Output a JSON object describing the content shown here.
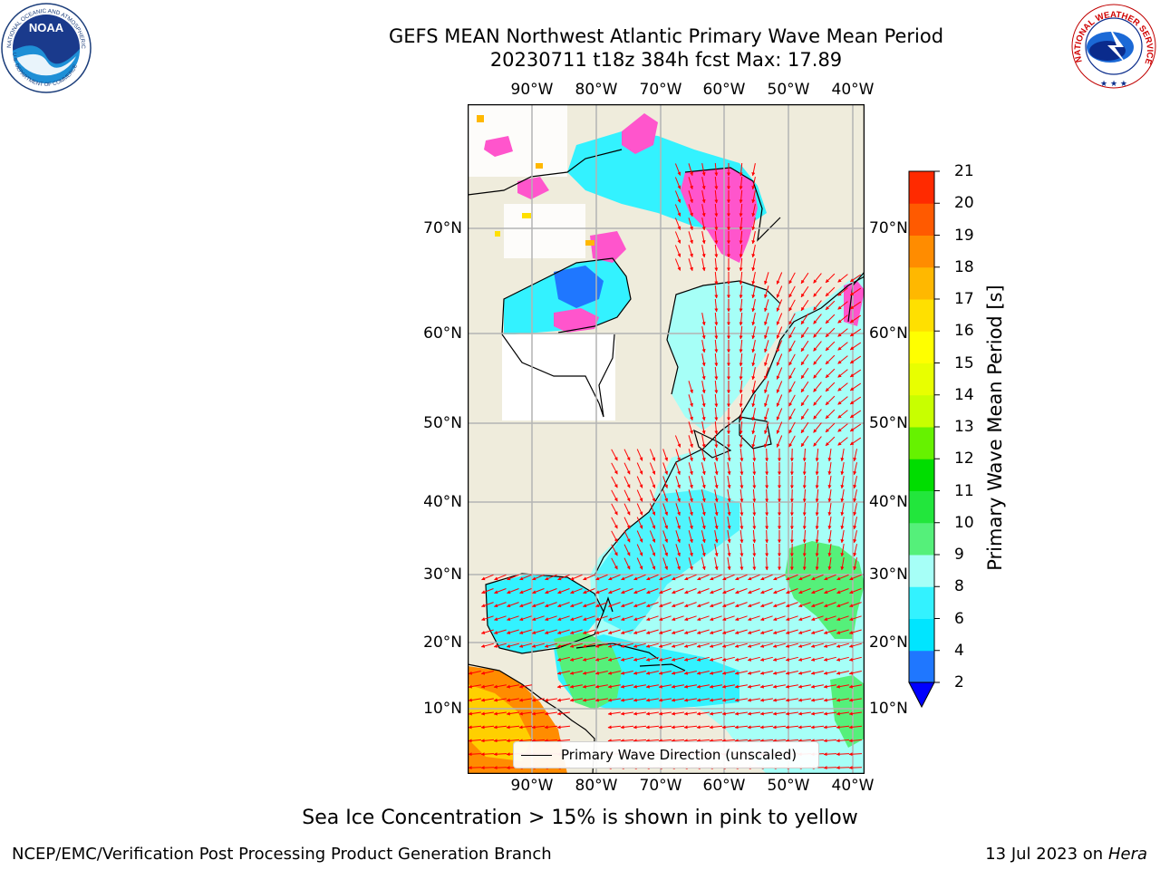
{
  "title": {
    "line1": "GEFS MEAN Northwest Atlantic Primary Wave Mean Period",
    "line2": "20230711 t18z 384h fcst   Max: 17.89"
  },
  "axes": {
    "lon_labels": [
      "90°W",
      "80°W",
      "70°W",
      "60°W",
      "50°W",
      "40°W"
    ],
    "lat_labels": [
      "70°N",
      "60°N",
      "50°N",
      "40°N",
      "30°N",
      "20°N",
      "10°N"
    ]
  },
  "colorbar": {
    "label": "Primary Wave Mean Period [s]",
    "ticks": [
      "2",
      "4",
      "6",
      "8",
      "9",
      "10",
      "11",
      "12",
      "13",
      "14",
      "15",
      "16",
      "17",
      "18",
      "19",
      "20",
      "21"
    ],
    "colors": [
      "#1f77ff",
      "#00e5ff",
      "#33f2ff",
      "#a6fff7",
      "#55f07a",
      "#22e63c",
      "#00dd00",
      "#66f200",
      "#c8ff00",
      "#e8ff00",
      "#ffff00",
      "#ffe000",
      "#ffb800",
      "#ff8c00",
      "#ff5a00",
      "#ff2a00",
      "#ff0000"
    ],
    "under_color": "#0000ff"
  },
  "legend": {
    "label": "Primary Wave Direction (unscaled)"
  },
  "logos": {
    "noaa_text": "NOAA",
    "noaa_ring": "NATIONAL OCEANIC AND ATMOSPHERIC ADMINISTRATION",
    "noaa_ring_bottom": "U.S. DEPARTMENT OF COMMERCE",
    "nws_ring": "NATIONAL WEATHER SERVICE"
  },
  "footer": {
    "note": "Sea Ice Concentration > 15% is shown in pink to yellow",
    "left": "NCEP/EMC/Verification Post Processing Product Generation Branch",
    "date": "13 Jul 2023 on",
    "machine": "Hera"
  },
  "colors": {
    "land": "#efecdc",
    "grid": "#b4b4b4",
    "arrow": "#ff0000",
    "sea_ice": "#ff55cc"
  }
}
